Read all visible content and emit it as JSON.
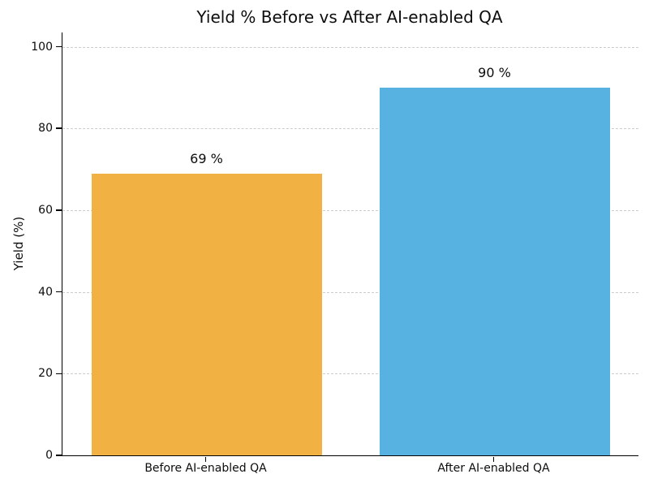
{
  "chart_data": {
    "type": "bar",
    "title": "Yield % Before vs After AI-enabled QA",
    "categories": [
      "Before AI-enabled QA",
      "After AI-enabled QA"
    ],
    "values": [
      69,
      90
    ],
    "bar_labels": [
      "69 %",
      "90 %"
    ],
    "bar_colors": [
      "#F2B243",
      "#57B2E2"
    ],
    "xlabel": "",
    "ylabel": "Yield (%)",
    "ylim": [
      0,
      103.5
    ],
    "yticks": [
      0,
      20,
      40,
      60,
      80,
      100
    ],
    "grid": "horizontal dashed",
    "gridline_color": "#cccccc",
    "background": "#ffffff",
    "legend": "none"
  }
}
